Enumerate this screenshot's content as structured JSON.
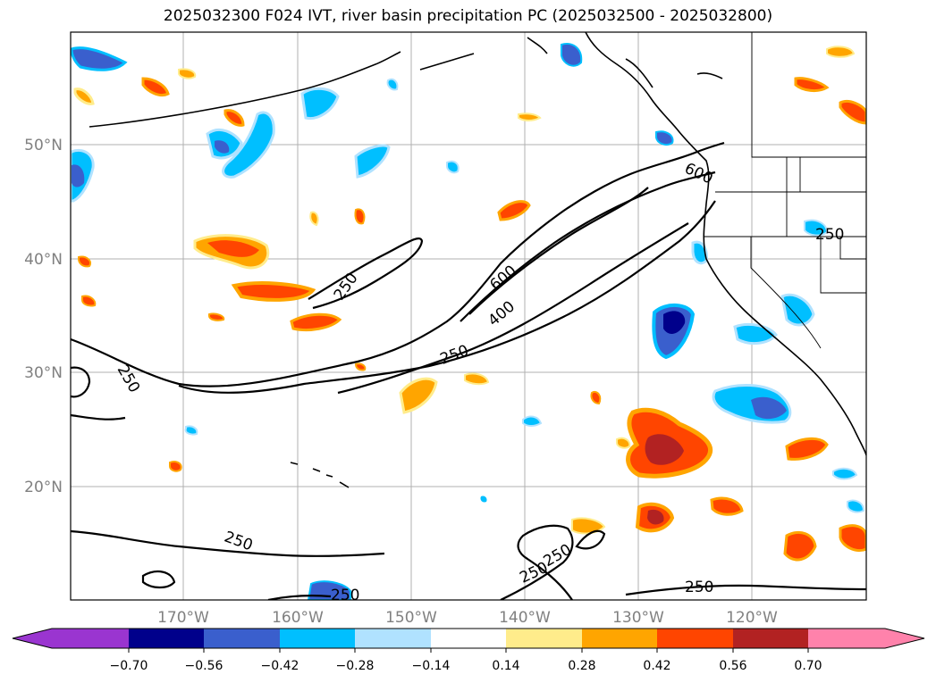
{
  "title": "2025032300 F024 IVT, river basin precipitation PC (2025032500 - 2025032800)",
  "map": {
    "lat_labels": [
      "50°N",
      "40°N",
      "30°N",
      "20°N"
    ],
    "lon_labels": [
      "170°W",
      "160°W",
      "150°W",
      "140°W",
      "130°W",
      "120°W"
    ],
    "ivt_contour_labels": [
      "250",
      "250",
      "250",
      "250",
      "250",
      "250",
      "250",
      "250",
      "400",
      "600",
      "600",
      "250"
    ],
    "colors": {
      "neg_070": "#9a35d0",
      "neg_056": "#00008b",
      "neg_042": "#3a5fcd",
      "neg_028": "#00bfff",
      "neg_014": "#b0e2ff",
      "zero": "#ffffff",
      "pos_014": "#ffec8b",
      "pos_028": "#ffa500",
      "pos_042": "#ff4500",
      "pos_056": "#b22222",
      "pos_070": "#ff82ab"
    }
  },
  "colorbar": {
    "ticks": [
      "−0.70",
      "−0.56",
      "−0.42",
      "−0.28",
      "−0.14",
      "0.14",
      "0.28",
      "0.42",
      "0.56",
      "0.70"
    ]
  }
}
